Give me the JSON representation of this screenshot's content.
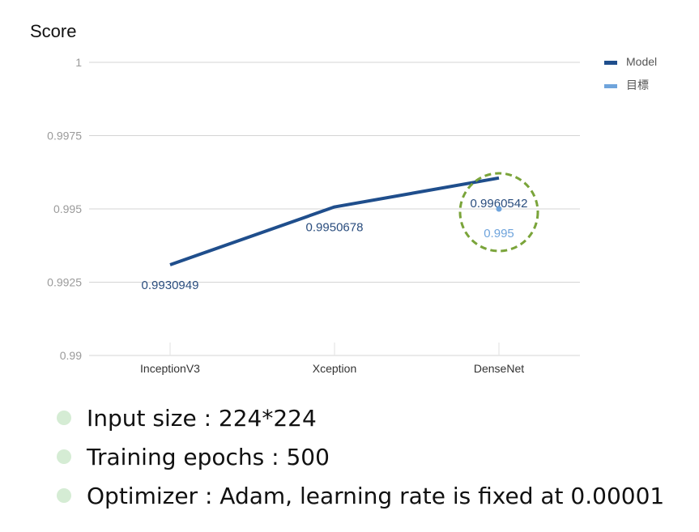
{
  "chart_data": {
    "type": "line",
    "title": "",
    "ylabel": "Score",
    "xlabel": "",
    "categories": [
      "InceptionV3",
      "Xception",
      "DenseNet"
    ],
    "ylim": [
      0.99,
      1
    ],
    "y_ticks": [
      "0.99",
      "0.9925",
      "0.995",
      "0.9975",
      "1"
    ],
    "grid": true,
    "legend_position": "top-right",
    "series": [
      {
        "name": "Model",
        "color": "#1f4e8c",
        "values": [
          0.9930949,
          0.9950678,
          0.9960542
        ],
        "labels": [
          "0.9930949",
          "0.9950678",
          "0.9960542"
        ]
      },
      {
        "name": "目標",
        "color": "#6fa4dc",
        "points": [
          {
            "category": "DenseNet",
            "value": 0.995,
            "label": "0.995"
          }
        ]
      }
    ],
    "annotation": {
      "shape": "dashed-circle",
      "target": "DenseNet",
      "color": "#7aa43a"
    }
  },
  "bullets": {
    "dot_color": "#d5ecd4",
    "items": [
      "Input size : 224*224",
      "Training epochs : 500",
      "Optimizer : Adam, learning rate is fixed at 0.00001"
    ]
  }
}
